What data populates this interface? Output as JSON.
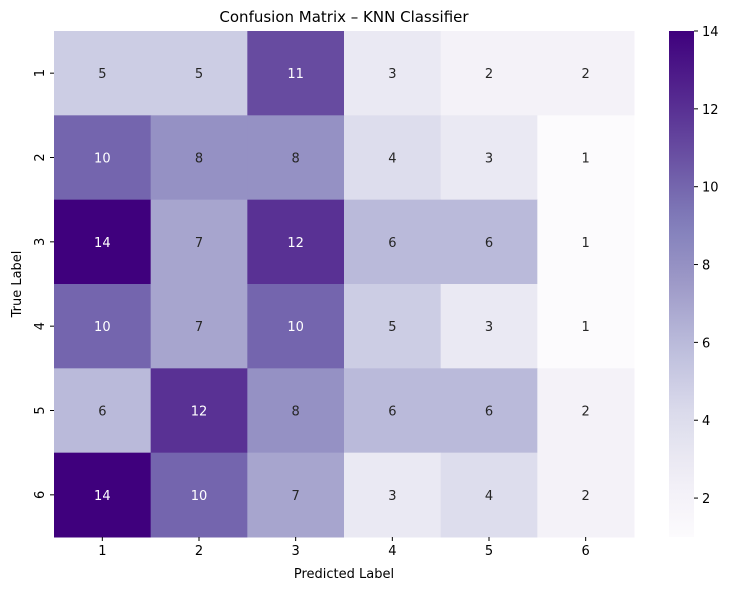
{
  "chart_data": {
    "type": "heatmap",
    "title": "Confusion Matrix – KNN Classifier",
    "xlabel": "Predicted Label",
    "ylabel": "True Label",
    "x_categories": [
      "1",
      "2",
      "3",
      "4",
      "5",
      "6"
    ],
    "y_categories": [
      "1",
      "2",
      "3",
      "4",
      "5",
      "6"
    ],
    "values": [
      [
        5,
        5,
        11,
        3,
        2,
        2
      ],
      [
        10,
        8,
        8,
        4,
        3,
        1
      ],
      [
        14,
        7,
        12,
        6,
        6,
        1
      ],
      [
        10,
        7,
        10,
        5,
        3,
        1
      ],
      [
        6,
        12,
        8,
        6,
        6,
        2
      ],
      [
        14,
        10,
        7,
        3,
        4,
        2
      ]
    ],
    "colorbar": {
      "min": 1,
      "max": 14,
      "ticks": [
        2,
        4,
        6,
        8,
        10,
        12,
        14
      ],
      "colormap": "Purples"
    },
    "annotations": true
  }
}
